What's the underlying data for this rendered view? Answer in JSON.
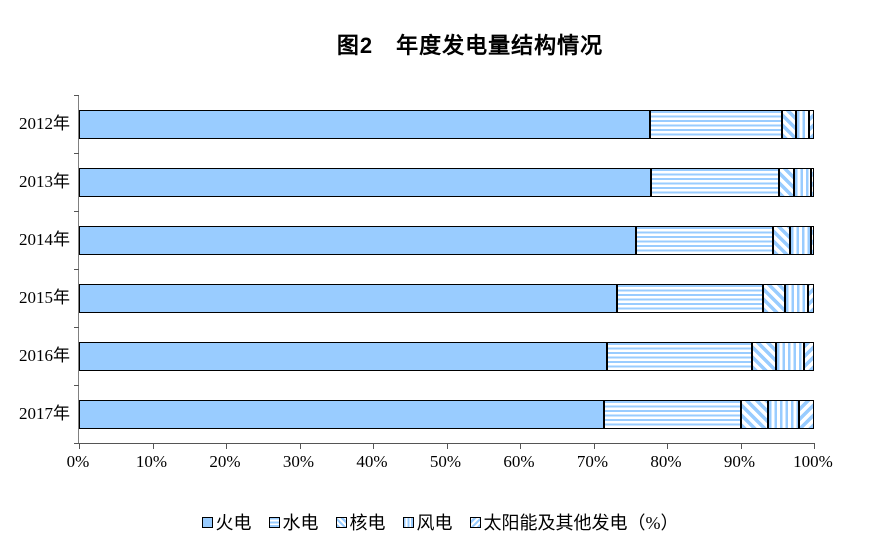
{
  "title": "图2　年度发电量结构情况",
  "colors": {
    "series_fill": "#99CCFF",
    "segment_border": "#000000",
    "axis": "#808080",
    "background": "#FFFFFF"
  },
  "chart_data": {
    "type": "bar",
    "orientation": "horizontal",
    "stacked": true,
    "unit": "%",
    "title": "图2　年度发电量结构情况",
    "categories": [
      "2012年",
      "2013年",
      "2014年",
      "2015年",
      "2016年",
      "2017年"
    ],
    "series": [
      {
        "name": "火电",
        "pattern": "solid",
        "values": [
          77.7,
          77.8,
          75.8,
          73.2,
          71.9,
          71.4
        ]
      },
      {
        "name": "水电",
        "pattern": "horizontal-stripes",
        "values": [
          17.9,
          17.4,
          18.6,
          19.9,
          19.7,
          18.7
        ]
      },
      {
        "name": "核电",
        "pattern": "diagonal-down-stripes",
        "values": [
          2.0,
          2.1,
          2.3,
          3.0,
          3.2,
          3.6
        ]
      },
      {
        "name": "风电",
        "pattern": "vertical-stripes",
        "values": [
          1.7,
          2.3,
          2.9,
          3.1,
          3.8,
          4.2
        ]
      },
      {
        "name": "太阳能及其他发电（%）",
        "pattern": "diagonal-up-stripes",
        "values": [
          0.7,
          0.4,
          0.4,
          0.8,
          1.4,
          2.1
        ]
      }
    ],
    "xlim": [
      0,
      100
    ],
    "x_ticks": [
      "0%",
      "10%",
      "20%",
      "30%",
      "40%",
      "50%",
      "60%",
      "70%",
      "80%",
      "90%",
      "100%"
    ],
    "grid": false,
    "legend_position": "bottom"
  },
  "legend": {
    "items": [
      {
        "label": "火电",
        "pattern": "solid"
      },
      {
        "label": "水电",
        "pattern": "horizontal-stripes"
      },
      {
        "label": "核电",
        "pattern": "diagonal-down-stripes"
      },
      {
        "label": "风电",
        "pattern": "vertical-stripes"
      },
      {
        "label": "太阳能及其他发电（%）",
        "pattern": "diagonal-up-stripes"
      }
    ]
  }
}
